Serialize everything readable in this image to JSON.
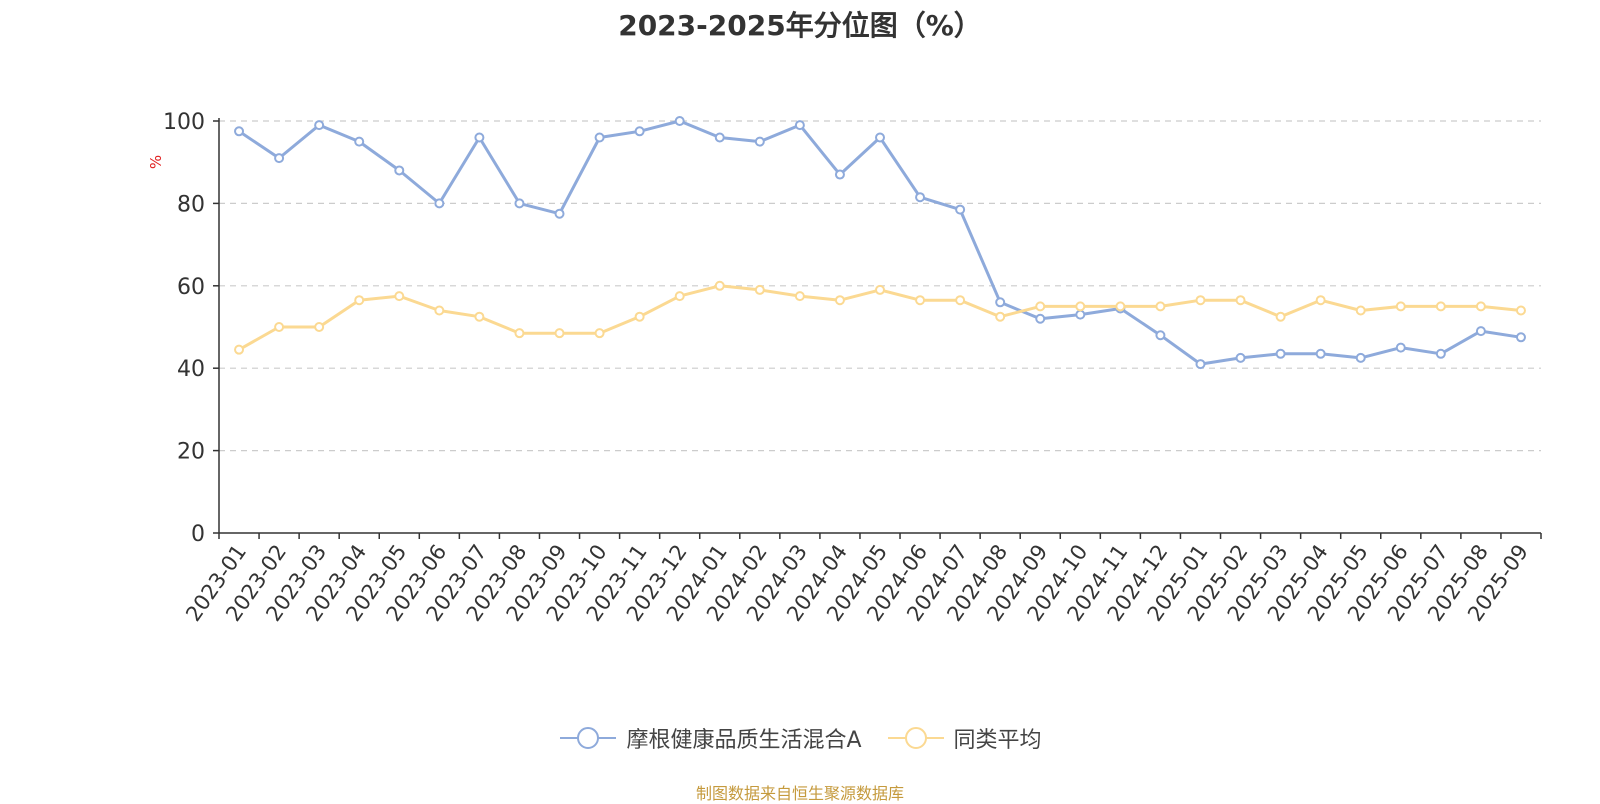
{
  "chart_data": {
    "type": "line",
    "title": "2023-2025年分位图（%）",
    "ylabel": "%",
    "xlabel": "",
    "ylim": [
      0,
      100
    ],
    "yticks": [
      0,
      20,
      40,
      60,
      80,
      100
    ],
    "grid": true,
    "legend_position": "bottom",
    "categories": [
      "2023-01",
      "2023-02",
      "2023-03",
      "2023-04",
      "2023-05",
      "2023-06",
      "2023-07",
      "2023-08",
      "2023-09",
      "2023-10",
      "2023-11",
      "2023-12",
      "2024-01",
      "2024-02",
      "2024-03",
      "2024-04",
      "2024-05",
      "2024-06",
      "2024-07",
      "2024-08",
      "2024-09",
      "2024-10",
      "2024-11",
      "2024-12",
      "2025-01",
      "2025-02",
      "2025-03",
      "2025-04",
      "2025-05",
      "2025-06",
      "2025-07",
      "2025-08",
      "2025-09"
    ],
    "series": [
      {
        "name": "摩根健康品质生活混合A",
        "color": "#8eaadb",
        "values": [
          97.5,
          91,
          99,
          95,
          88,
          80,
          96,
          80,
          77.5,
          96,
          97.5,
          100,
          96,
          95,
          99,
          87,
          96,
          81.5,
          78.5,
          56,
          52,
          53,
          54.5,
          48,
          41,
          42.5,
          43.5,
          43.5,
          42.5,
          45,
          43.5,
          49,
          47.5
        ]
      },
      {
        "name": "同类平均",
        "color": "#fbd992",
        "values": [
          44.5,
          50,
          50,
          56.5,
          57.5,
          54,
          52.5,
          48.5,
          48.5,
          48.5,
          52.5,
          57.5,
          60,
          59,
          57.5,
          56.5,
          59,
          56.5,
          56.5,
          52.5,
          55,
          55,
          55,
          55,
          56.5,
          56.5,
          52.5,
          56.5,
          54,
          55,
          55,
          55,
          54
        ]
      }
    ]
  },
  "footer": {
    "source": "制图数据来自恒生聚源数据库"
  }
}
